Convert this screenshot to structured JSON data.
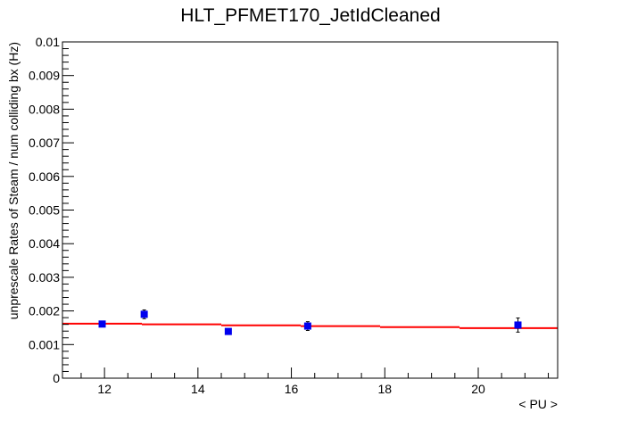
{
  "chart_data": {
    "type": "scatter",
    "title": "HLT_PFMET170_JetIdCleaned",
    "xlabel": "< PU >",
    "ylabel": "unprescale Rates of Steam / num colliding bx (Hz)",
    "xlim": [
      11.1,
      21.7
    ],
    "ylim": [
      0,
      0.01
    ],
    "x_ticks": [
      12,
      14,
      16,
      18,
      20
    ],
    "y_ticks": [
      0,
      0.001,
      0.002,
      0.003,
      0.004,
      0.005,
      0.006,
      0.007,
      0.008,
      0.009,
      0.01
    ],
    "x_tick_labels": [
      "12",
      "14",
      "16",
      "18",
      "20"
    ],
    "y_tick_labels": [
      "0",
      "0.001",
      "0.002",
      "0.003",
      "0.004",
      "0.005",
      "0.006",
      "0.007",
      "0.008",
      "0.009",
      "0.01"
    ],
    "grid": false,
    "legend": "none",
    "series": [
      {
        "marker_color": "#0000ee",
        "points": [
          {
            "x": 11.95,
            "y": 0.00161,
            "err": 8e-05
          },
          {
            "x": 12.85,
            "y": 0.0019,
            "err": 0.00013
          },
          {
            "x": 14.65,
            "y": 0.00139,
            "err": 6e-05
          },
          {
            "x": 16.35,
            "y": 0.00155,
            "err": 0.00013
          },
          {
            "x": 20.85,
            "y": 0.00158,
            "err": 0.00021
          }
        ]
      }
    ],
    "fit": {
      "color": "#ff0000",
      "segments": [
        {
          "x0": 11.1,
          "x1": 12.8,
          "y": 0.00162
        },
        {
          "x0": 12.8,
          "x1": 14.5,
          "y": 0.0016
        },
        {
          "x0": 14.5,
          "x1": 16.2,
          "y": 0.00157
        },
        {
          "x0": 16.2,
          "x1": 17.9,
          "y": 0.00155
        },
        {
          "x0": 17.9,
          "x1": 19.6,
          "y": 0.00152
        },
        {
          "x0": 19.6,
          "x1": 21.7,
          "y": 0.00149
        }
      ]
    }
  }
}
